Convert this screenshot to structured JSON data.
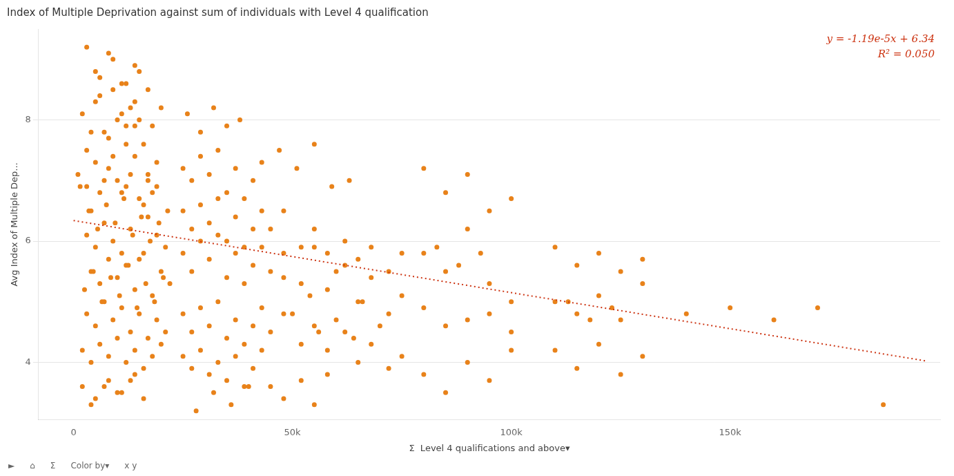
{
  "chart_data": {
    "type": "scatter",
    "title": "Index of Multiple Deprivation against sum of individuals with Level 4 qualification",
    "xlabel": "Σ  Level 4 qualifications and above▾",
    "ylabel": "Avg Index of Multiple Dep...",
    "annotations": [
      "y = -1.19e-5x + 6.34",
      "R² = 0.050",
      "►",
      "⌂",
      "Σ",
      "Color by▾",
      "x y"
    ],
    "xlim": [
      -8000,
      198000
    ],
    "ylim": [
      3.05,
      9.5
    ],
    "xticks": [
      0,
      {
        "value": 50000,
        "label": "50k"
      },
      {
        "value": 100000,
        "label": "100k"
      },
      {
        "value": 150000,
        "label": "150k"
      }
    ],
    "yticks": [
      4,
      6,
      8
    ],
    "grid": "y",
    "series": [
      {
        "type": "scatter",
        "color": "#E8821A",
        "marker": "circle",
        "x": [
          1500,
          3000,
          5000,
          7000,
          9000,
          11000,
          12000,
          13000,
          14000,
          15000,
          4000,
          6000,
          8000,
          10000,
          12000,
          14000,
          16000,
          17000,
          18000,
          19000,
          3000,
          5000,
          7000,
          9000,
          11000,
          13000,
          15000,
          17000,
          19000,
          21000,
          4000,
          6000,
          8000,
          10000,
          12000,
          14000,
          16000,
          18000,
          20000,
          22000,
          3000,
          5000,
          7000,
          9000,
          11000,
          13000,
          15000,
          17000,
          19000,
          21000,
          2000,
          4000,
          6000,
          8000,
          10000,
          12000,
          14000,
          16000,
          18000,
          20000,
          2500,
          4500,
          6500,
          8500,
          10500,
          12500,
          14500,
          16500,
          18500,
          20500,
          3500,
          5500,
          7500,
          9500,
          11500,
          13500,
          15500,
          17500,
          19500,
          21500,
          1000,
          3000,
          5000,
          7000,
          9000,
          11000,
          13000,
          15000,
          17000,
          19000,
          2000,
          4000,
          6000,
          8000,
          10000,
          12000,
          14000,
          16000,
          18000,
          20000,
          5000,
          8000,
          11000,
          14000,
          17000,
          3000,
          6000,
          9000,
          12000,
          15000,
          2000,
          5000,
          8000,
          11000,
          14000,
          4000,
          7000,
          10000,
          13000,
          16000,
          25000,
          27000,
          29000,
          31000,
          33000,
          35000,
          37000,
          39000,
          41000,
          43000,
          25000,
          27000,
          29000,
          31000,
          33000,
          35000,
          37000,
          39000,
          41000,
          43000,
          25000,
          27000,
          29000,
          31000,
          33000,
          35000,
          37000,
          39000,
          41000,
          43000,
          25000,
          27000,
          29000,
          31000,
          33000,
          35000,
          37000,
          39000,
          41000,
          43000,
          25000,
          27000,
          29000,
          31000,
          33000,
          35000,
          37000,
          39000,
          41000,
          43000,
          26000,
          29000,
          32000,
          35000,
          38000,
          28000,
          32000,
          36000,
          40000,
          45000,
          48000,
          52000,
          55000,
          58000,
          62000,
          65000,
          68000,
          72000,
          75000,
          45000,
          48000,
          52000,
          55000,
          58000,
          62000,
          65000,
          68000,
          72000,
          75000,
          45000,
          48000,
          52000,
          55000,
          58000,
          62000,
          65000,
          68000,
          72000,
          75000,
          45000,
          48000,
          52000,
          55000,
          58000,
          47000,
          51000,
          55000,
          59000,
          63000,
          50000,
          56000,
          60000,
          64000,
          70000,
          48000,
          54000,
          60000,
          66000,
          80000,
          85000,
          90000,
          95000,
          100000,
          80000,
          85000,
          90000,
          95000,
          100000,
          80000,
          85000,
          90000,
          95000,
          100000,
          80000,
          85000,
          90000,
          95000,
          100000,
          83000,
          88000,
          93000,
          110000,
          115000,
          120000,
          125000,
          130000,
          110000,
          115000,
          120000,
          125000,
          130000,
          110000,
          115000,
          120000,
          125000,
          130000,
          113000,
          118000,
          123000,
          140000,
          150000,
          160000,
          170000,
          185000
        ],
        "values": [
          6.9,
          7.5,
          8.3,
          7.8,
          8.5,
          8.1,
          7.6,
          8.2,
          7.9,
          8.0,
          6.5,
          6.8,
          7.2,
          7.0,
          6.9,
          7.4,
          6.6,
          7.1,
          6.8,
          7.3,
          6.1,
          5.9,
          6.3,
          6.0,
          5.8,
          6.2,
          5.7,
          6.4,
          6.1,
          5.9,
          5.5,
          5.3,
          5.7,
          5.4,
          5.6,
          5.2,
          5.8,
          5.1,
          5.5,
          5.3,
          4.8,
          4.6,
          5.0,
          4.7,
          4.9,
          4.5,
          4.8,
          4.4,
          4.7,
          4.5,
          4.2,
          4.0,
          4.3,
          4.1,
          4.4,
          4.0,
          4.2,
          3.9,
          4.1,
          4.3,
          5.2,
          5.5,
          5.0,
          5.4,
          5.1,
          5.6,
          4.9,
          5.3,
          5.0,
          5.4,
          6.5,
          6.2,
          6.6,
          6.3,
          6.7,
          6.1,
          6.4,
          6.0,
          6.3,
          6.5,
          7.1,
          6.9,
          7.3,
          7.0,
          7.4,
          6.8,
          7.1,
          6.7,
          7.0,
          6.9,
          8.1,
          7.8,
          8.4,
          7.7,
          8.0,
          7.9,
          8.3,
          7.6,
          7.9,
          8.2,
          8.8,
          9.1,
          8.6,
          8.9,
          8.5,
          9.2,
          8.7,
          9.0,
          8.6,
          8.8,
          3.6,
          3.4,
          3.7,
          3.5,
          3.8,
          3.3,
          3.6,
          3.5,
          3.7,
          3.4,
          5.8,
          5.5,
          6.0,
          5.7,
          6.1,
          5.4,
          5.8,
          5.3,
          5.6,
          5.9,
          6.5,
          6.2,
          6.6,
          6.3,
          6.7,
          6.0,
          6.4,
          5.9,
          6.2,
          6.5,
          4.8,
          4.5,
          4.9,
          4.6,
          5.0,
          4.4,
          4.7,
          4.3,
          4.6,
          4.9,
          4.1,
          3.9,
          4.2,
          3.8,
          4.0,
          3.7,
          4.1,
          3.6,
          3.9,
          4.2,
          7.2,
          7.0,
          7.4,
          7.1,
          7.5,
          6.8,
          7.2,
          6.7,
          7.0,
          7.3,
          8.1,
          7.8,
          8.2,
          7.9,
          8.0,
          3.2,
          3.5,
          3.3,
          3.6,
          5.5,
          5.8,
          5.3,
          5.9,
          5.2,
          5.6,
          5.0,
          5.4,
          4.8,
          5.1,
          4.5,
          4.8,
          4.3,
          4.6,
          4.2,
          4.5,
          4.0,
          4.3,
          3.9,
          4.1,
          6.2,
          6.5,
          5.9,
          6.2,
          5.8,
          6.0,
          5.7,
          5.9,
          5.5,
          5.8,
          3.6,
          3.4,
          3.7,
          3.3,
          3.8,
          7.5,
          7.2,
          7.6,
          6.9,
          7.0,
          4.8,
          4.5,
          4.7,
          4.4,
          4.6,
          5.4,
          5.1,
          5.5,
          5.0,
          4.9,
          4.6,
          4.7,
          4.8,
          4.5,
          5.8,
          5.5,
          6.2,
          5.3,
          5.0,
          3.8,
          3.5,
          4.0,
          3.7,
          4.2,
          7.2,
          6.8,
          7.1,
          6.5,
          6.7,
          5.9,
          5.6,
          5.8,
          5.0,
          4.8,
          5.1,
          4.7,
          5.3,
          4.2,
          3.9,
          4.3,
          3.8,
          4.1,
          5.9,
          5.6,
          5.8,
          5.5,
          5.7,
          5.0,
          4.7,
          4.9,
          4.8,
          4.9,
          4.7,
          4.9,
          3.3
        ]
      },
      {
        "type": "line",
        "color": "#CC3311",
        "line_style": "dotted",
        "x": [
          0,
          195000
        ],
        "values": [
          6.34,
          4.0195
        ]
      }
    ]
  }
}
